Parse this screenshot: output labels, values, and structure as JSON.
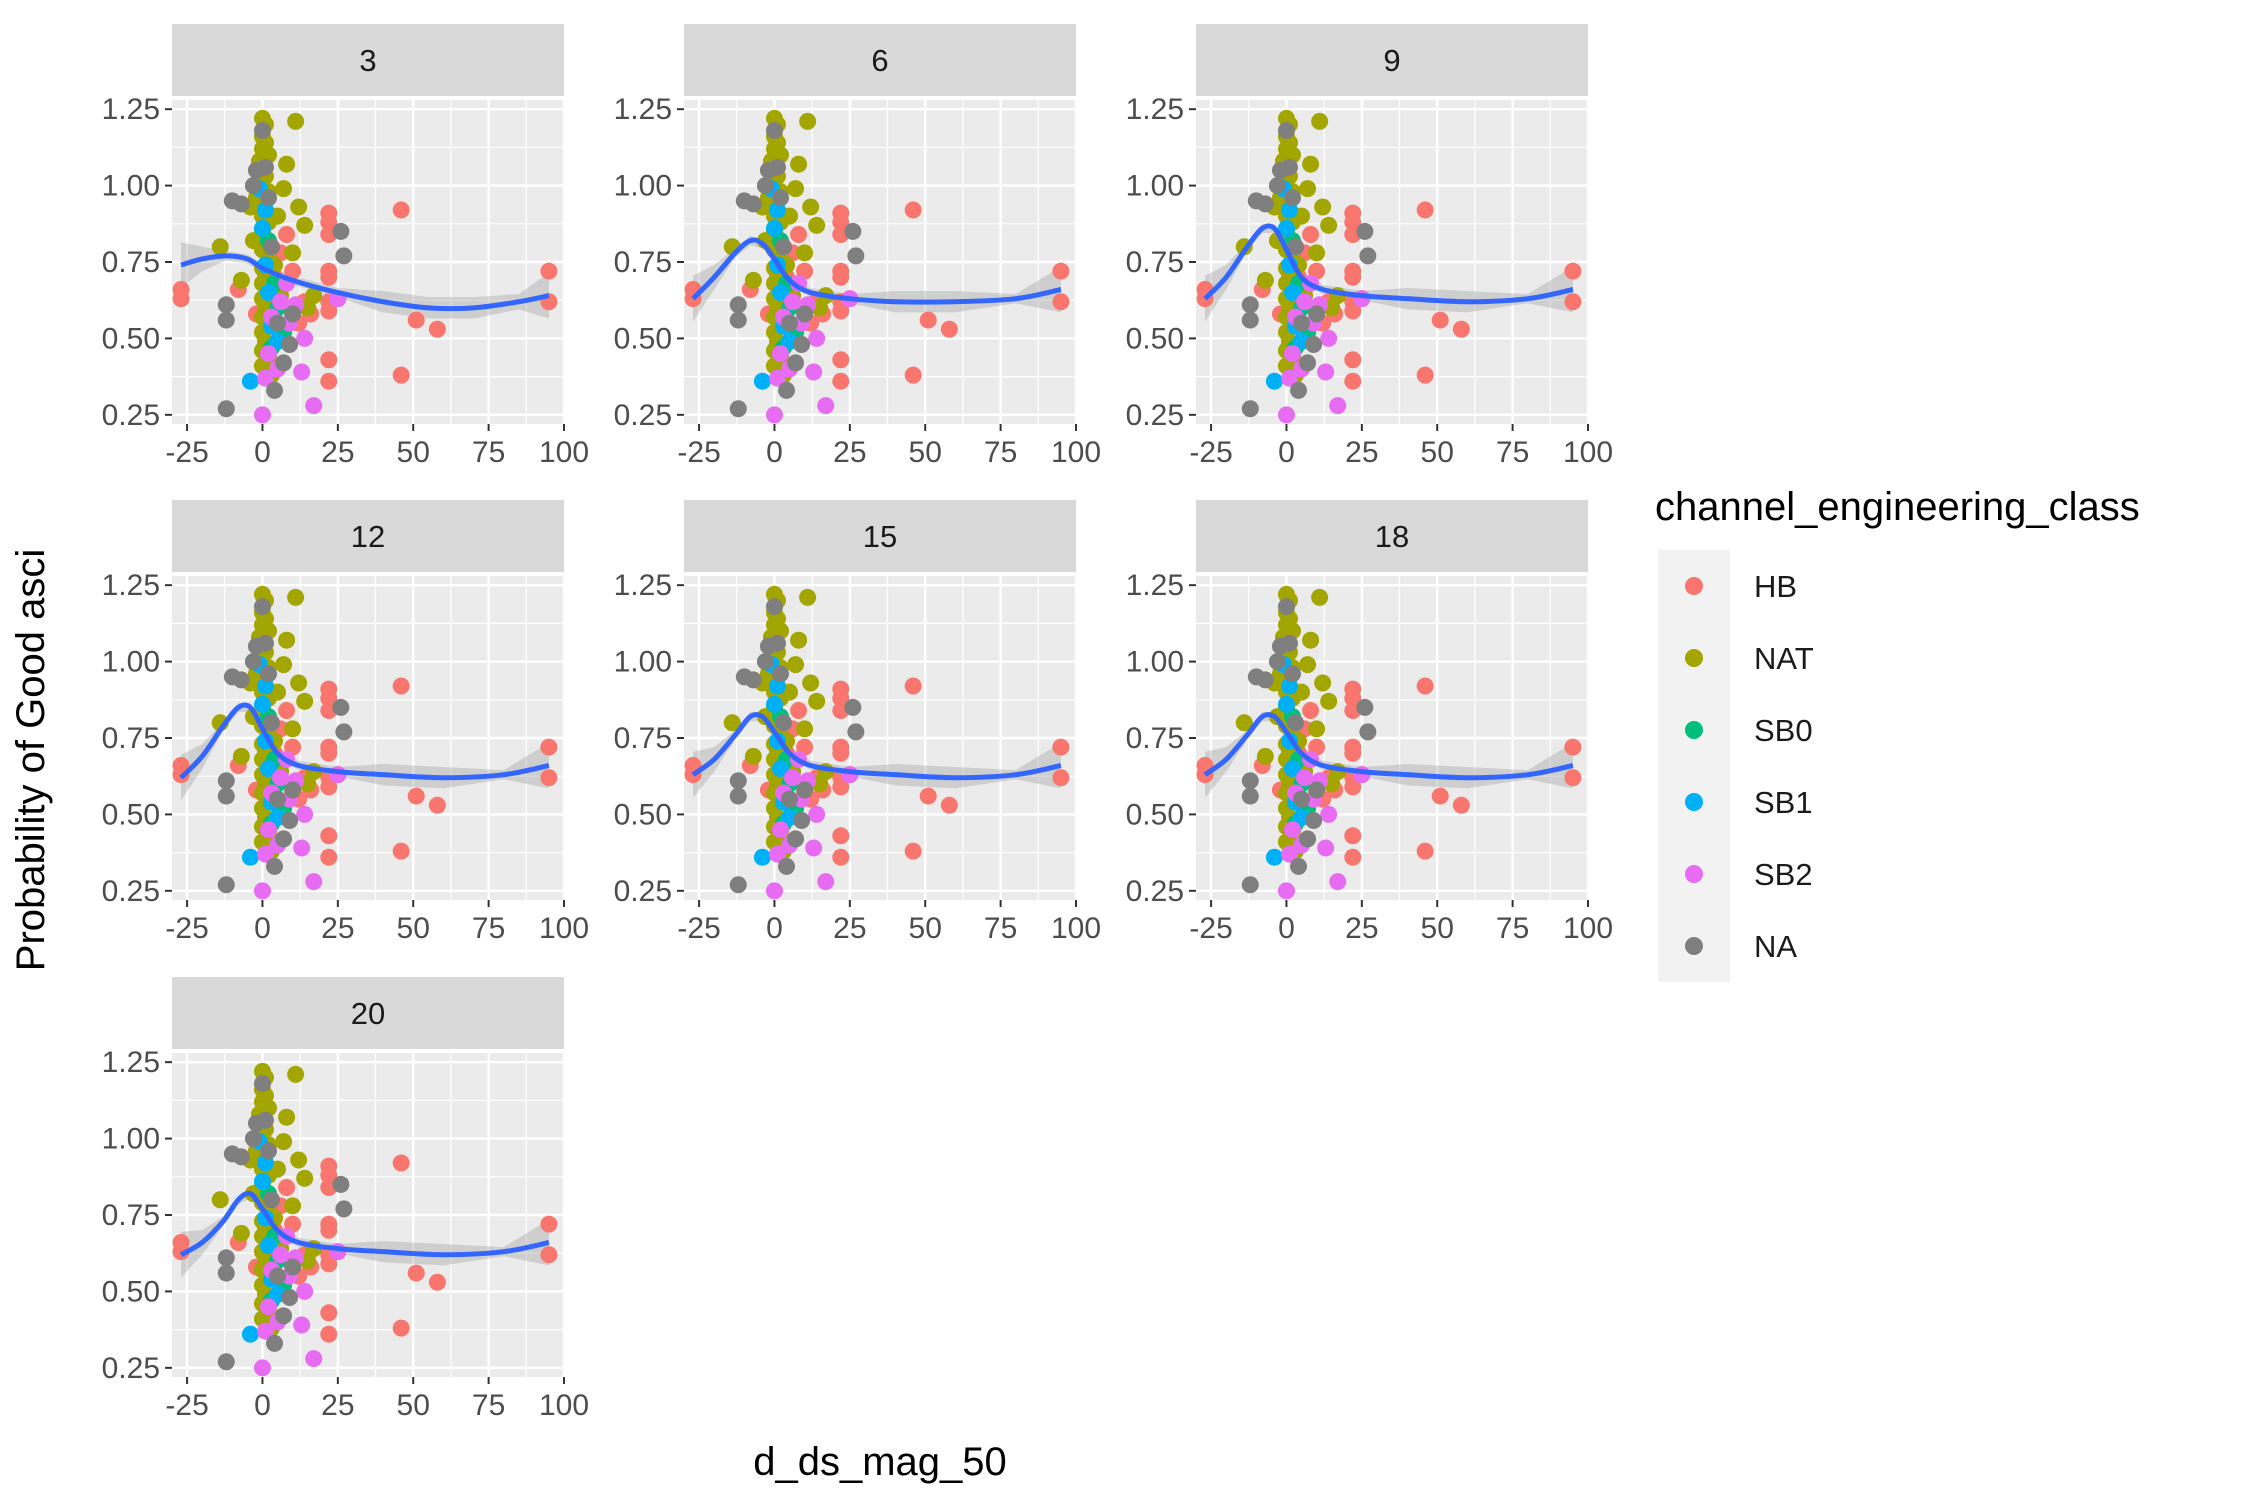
{
  "chart_data": {
    "type": "scatter",
    "xlabel": "d_ds_mag_50",
    "ylabel": "Probability of Good asci",
    "xlim": [
      -30,
      100
    ],
    "ylim": [
      0.22,
      1.28
    ],
    "xticks": [
      -25,
      0,
      25,
      50,
      75,
      100
    ],
    "xtick_labels": [
      "-25",
      "0",
      "25",
      "50",
      "75",
      "100"
    ],
    "yticks": [
      0.25,
      0.5,
      0.75,
      1.0,
      1.25
    ],
    "ytick_labels": [
      "0.25",
      "0.50",
      "0.75",
      "1.00",
      "1.25"
    ],
    "grid": true,
    "legend": {
      "title": "channel_engineering_class",
      "position": "right",
      "entries": [
        {
          "label": "HB",
          "color": "#F8766D"
        },
        {
          "label": "NAT",
          "color": "#A3A500"
        },
        {
          "label": "SB0",
          "color": "#00BF7D"
        },
        {
          "label": "SB1",
          "color": "#00B0F6"
        },
        {
          "label": "SB2",
          "color": "#E76BF3"
        },
        {
          "label": "NA",
          "color": "#7F7F7F"
        }
      ]
    },
    "smooth_color": "#3366FF",
    "panels": [
      {
        "label": "3",
        "smooth": [
          [
            -27,
            0.74
          ],
          [
            -20,
            0.76
          ],
          [
            -12,
            0.77
          ],
          [
            -5,
            0.76
          ],
          [
            0,
            0.73
          ],
          [
            10,
            0.69
          ],
          [
            25,
            0.65
          ],
          [
            40,
            0.62
          ],
          [
            55,
            0.6
          ],
          [
            70,
            0.6
          ],
          [
            85,
            0.62
          ],
          [
            95,
            0.64
          ]
        ]
      },
      {
        "label": "6",
        "smooth": [
          [
            -27,
            0.63
          ],
          [
            -20,
            0.7
          ],
          [
            -13,
            0.78
          ],
          [
            -8,
            0.82
          ],
          [
            -4,
            0.81
          ],
          [
            0,
            0.76
          ],
          [
            5,
            0.69
          ],
          [
            12,
            0.65
          ],
          [
            25,
            0.63
          ],
          [
            40,
            0.62
          ],
          [
            60,
            0.62
          ],
          [
            80,
            0.63
          ],
          [
            95,
            0.66
          ]
        ]
      },
      {
        "label": "9",
        "smooth": [
          [
            -27,
            0.63
          ],
          [
            -20,
            0.7
          ],
          [
            -13,
            0.8
          ],
          [
            -8,
            0.86
          ],
          [
            -4,
            0.86
          ],
          [
            0,
            0.79
          ],
          [
            5,
            0.7
          ],
          [
            12,
            0.66
          ],
          [
            25,
            0.64
          ],
          [
            40,
            0.63
          ],
          [
            60,
            0.62
          ],
          [
            80,
            0.63
          ],
          [
            95,
            0.66
          ]
        ]
      },
      {
        "label": "12",
        "smooth": [
          [
            -27,
            0.62
          ],
          [
            -20,
            0.69
          ],
          [
            -13,
            0.79
          ],
          [
            -8,
            0.85
          ],
          [
            -4,
            0.85
          ],
          [
            0,
            0.78
          ],
          [
            5,
            0.7
          ],
          [
            12,
            0.66
          ],
          [
            25,
            0.64
          ],
          [
            40,
            0.63
          ],
          [
            60,
            0.62
          ],
          [
            80,
            0.63
          ],
          [
            95,
            0.66
          ]
        ]
      },
      {
        "label": "15",
        "smooth": [
          [
            -27,
            0.63
          ],
          [
            -20,
            0.68
          ],
          [
            -13,
            0.76
          ],
          [
            -8,
            0.82
          ],
          [
            -4,
            0.82
          ],
          [
            0,
            0.77
          ],
          [
            5,
            0.7
          ],
          [
            12,
            0.66
          ],
          [
            25,
            0.64
          ],
          [
            40,
            0.63
          ],
          [
            60,
            0.62
          ],
          [
            80,
            0.63
          ],
          [
            95,
            0.66
          ]
        ]
      },
      {
        "label": "18",
        "smooth": [
          [
            -27,
            0.63
          ],
          [
            -20,
            0.68
          ],
          [
            -13,
            0.76
          ],
          [
            -8,
            0.82
          ],
          [
            -4,
            0.82
          ],
          [
            0,
            0.77
          ],
          [
            5,
            0.7
          ],
          [
            12,
            0.66
          ],
          [
            25,
            0.64
          ],
          [
            40,
            0.63
          ],
          [
            60,
            0.62
          ],
          [
            80,
            0.63
          ],
          [
            95,
            0.66
          ]
        ]
      },
      {
        "label": "20",
        "smooth": [
          [
            -27,
            0.62
          ],
          [
            -20,
            0.66
          ],
          [
            -13,
            0.73
          ],
          [
            -8,
            0.8
          ],
          [
            -4,
            0.82
          ],
          [
            0,
            0.77
          ],
          [
            5,
            0.7
          ],
          [
            12,
            0.66
          ],
          [
            25,
            0.64
          ],
          [
            40,
            0.63
          ],
          [
            60,
            0.62
          ],
          [
            80,
            0.63
          ],
          [
            95,
            0.66
          ]
        ]
      }
    ],
    "points": [
      {
        "x": -27,
        "y": 0.66,
        "class": "HB"
      },
      {
        "x": -27,
        "y": 0.63,
        "class": "HB"
      },
      {
        "x": -8,
        "y": 0.66,
        "class": "HB"
      },
      {
        "x": -2,
        "y": 0.58,
        "class": "HB"
      },
      {
        "x": 2,
        "y": 0.62,
        "class": "HB"
      },
      {
        "x": 4,
        "y": 0.7,
        "class": "HB"
      },
      {
        "x": 6,
        "y": 0.78,
        "class": "HB"
      },
      {
        "x": 8,
        "y": 0.84,
        "class": "HB"
      },
      {
        "x": 10,
        "y": 0.72,
        "class": "HB"
      },
      {
        "x": 12,
        "y": 0.55,
        "class": "HB"
      },
      {
        "x": 14,
        "y": 0.62,
        "class": "HB"
      },
      {
        "x": 16,
        "y": 0.58,
        "class": "HB"
      },
      {
        "x": 22,
        "y": 0.91,
        "class": "HB"
      },
      {
        "x": 22,
        "y": 0.88,
        "class": "HB"
      },
      {
        "x": 22,
        "y": 0.84,
        "class": "HB"
      },
      {
        "x": 22,
        "y": 0.72,
        "class": "HB"
      },
      {
        "x": 22,
        "y": 0.7,
        "class": "HB"
      },
      {
        "x": 22,
        "y": 0.62,
        "class": "HB"
      },
      {
        "x": 22,
        "y": 0.59,
        "class": "HB"
      },
      {
        "x": 22,
        "y": 0.43,
        "class": "HB"
      },
      {
        "x": 22,
        "y": 0.36,
        "class": "HB"
      },
      {
        "x": 25,
        "y": 0.63,
        "class": "HB"
      },
      {
        "x": 46,
        "y": 0.92,
        "class": "HB"
      },
      {
        "x": 46,
        "y": 0.38,
        "class": "HB"
      },
      {
        "x": 51,
        "y": 0.56,
        "class": "HB"
      },
      {
        "x": 58,
        "y": 0.53,
        "class": "HB"
      },
      {
        "x": 95,
        "y": 0.72,
        "class": "HB"
      },
      {
        "x": 95,
        "y": 0.62,
        "class": "HB"
      },
      {
        "x": -14,
        "y": 0.8,
        "class": "NAT"
      },
      {
        "x": -7,
        "y": 0.69,
        "class": "NAT"
      },
      {
        "x": -4,
        "y": 0.93,
        "class": "NAT"
      },
      {
        "x": -3,
        "y": 0.82,
        "class": "NAT"
      },
      {
        "x": -2,
        "y": 0.96,
        "class": "NAT"
      },
      {
        "x": -1,
        "y": 1.08,
        "class": "NAT"
      },
      {
        "x": 0,
        "y": 1.22,
        "class": "NAT"
      },
      {
        "x": 1,
        "y": 1.2,
        "class": "NAT"
      },
      {
        "x": 0,
        "y": 1.16,
        "class": "NAT"
      },
      {
        "x": 1,
        "y": 1.14,
        "class": "NAT"
      },
      {
        "x": 0,
        "y": 1.12,
        "class": "NAT"
      },
      {
        "x": 2,
        "y": 1.1,
        "class": "NAT"
      },
      {
        "x": 0,
        "y": 1.05,
        "class": "NAT"
      },
      {
        "x": 1,
        "y": 1.03,
        "class": "NAT"
      },
      {
        "x": 0,
        "y": 1.0,
        "class": "NAT"
      },
      {
        "x": 2,
        "y": 0.98,
        "class": "NAT"
      },
      {
        "x": 0,
        "y": 0.95,
        "class": "NAT"
      },
      {
        "x": 1,
        "y": 0.92,
        "class": "NAT"
      },
      {
        "x": 0,
        "y": 0.9,
        "class": "NAT"
      },
      {
        "x": 2,
        "y": 0.88,
        "class": "NAT"
      },
      {
        "x": 0,
        "y": 0.85,
        "class": "NAT"
      },
      {
        "x": 1,
        "y": 0.82,
        "class": "NAT"
      },
      {
        "x": 0,
        "y": 0.79,
        "class": "NAT"
      },
      {
        "x": 2,
        "y": 0.76,
        "class": "NAT"
      },
      {
        "x": 0,
        "y": 0.73,
        "class": "NAT"
      },
      {
        "x": 1,
        "y": 0.71,
        "class": "NAT"
      },
      {
        "x": 0,
        "y": 0.68,
        "class": "NAT"
      },
      {
        "x": 2,
        "y": 0.66,
        "class": "NAT"
      },
      {
        "x": 0,
        "y": 0.63,
        "class": "NAT"
      },
      {
        "x": 1,
        "y": 0.6,
        "class": "NAT"
      },
      {
        "x": 0,
        "y": 0.57,
        "class": "NAT"
      },
      {
        "x": 2,
        "y": 0.55,
        "class": "NAT"
      },
      {
        "x": 0,
        "y": 0.52,
        "class": "NAT"
      },
      {
        "x": 1,
        "y": 0.49,
        "class": "NAT"
      },
      {
        "x": 0,
        "y": 0.46,
        "class": "NAT"
      },
      {
        "x": 2,
        "y": 0.44,
        "class": "NAT"
      },
      {
        "x": 0,
        "y": 0.41,
        "class": "NAT"
      },
      {
        "x": 3,
        "y": 0.38,
        "class": "NAT"
      },
      {
        "x": 4,
        "y": 0.74,
        "class": "NAT"
      },
      {
        "x": 5,
        "y": 0.9,
        "class": "NAT"
      },
      {
        "x": 6,
        "y": 0.64,
        "class": "NAT"
      },
      {
        "x": 7,
        "y": 0.99,
        "class": "NAT"
      },
      {
        "x": 8,
        "y": 1.07,
        "class": "NAT"
      },
      {
        "x": 10,
        "y": 0.78,
        "class": "NAT"
      },
      {
        "x": 11,
        "y": 1.21,
        "class": "NAT"
      },
      {
        "x": 12,
        "y": 0.93,
        "class": "NAT"
      },
      {
        "x": 14,
        "y": 0.87,
        "class": "NAT"
      },
      {
        "x": 15,
        "y": 0.6,
        "class": "NAT"
      },
      {
        "x": 17,
        "y": 0.64,
        "class": "NAT"
      },
      {
        "x": 2,
        "y": 0.82,
        "class": "SB0"
      },
      {
        "x": 4,
        "y": 0.68,
        "class": "SB0"
      },
      {
        "x": 5,
        "y": 0.6,
        "class": "SB0"
      },
      {
        "x": 7,
        "y": 0.52,
        "class": "SB0"
      },
      {
        "x": 3,
        "y": 0.47,
        "class": "SB0"
      },
      {
        "x": -4,
        "y": 0.36,
        "class": "SB1"
      },
      {
        "x": -1,
        "y": 0.99,
        "class": "SB1"
      },
      {
        "x": 0,
        "y": 0.86,
        "class": "SB1"
      },
      {
        "x": 1,
        "y": 0.74,
        "class": "SB1"
      },
      {
        "x": 2,
        "y": 0.65,
        "class": "SB1"
      },
      {
        "x": 3,
        "y": 0.54,
        "class": "SB1"
      },
      {
        "x": 5,
        "y": 0.49,
        "class": "SB1"
      },
      {
        "x": 1,
        "y": 0.92,
        "class": "SB1"
      },
      {
        "x": 0,
        "y": 0.25,
        "class": "SB2"
      },
      {
        "x": 1,
        "y": 0.37,
        "class": "SB2"
      },
      {
        "x": 2,
        "y": 0.45,
        "class": "SB2"
      },
      {
        "x": 3,
        "y": 0.57,
        "class": "SB2"
      },
      {
        "x": 5,
        "y": 0.4,
        "class": "SB2"
      },
      {
        "x": 6,
        "y": 0.62,
        "class": "SB2"
      },
      {
        "x": 8,
        "y": 0.68,
        "class": "SB2"
      },
      {
        "x": 9,
        "y": 0.55,
        "class": "SB2"
      },
      {
        "x": 11,
        "y": 0.61,
        "class": "SB2"
      },
      {
        "x": 13,
        "y": 0.39,
        "class": "SB2"
      },
      {
        "x": 14,
        "y": 0.5,
        "class": "SB2"
      },
      {
        "x": 17,
        "y": 0.28,
        "class": "SB2"
      },
      {
        "x": 25,
        "y": 0.63,
        "class": "SB2"
      },
      {
        "x": -12,
        "y": 0.27,
        "class": "NA"
      },
      {
        "x": -12,
        "y": 0.61,
        "class": "NA"
      },
      {
        "x": -12,
        "y": 0.56,
        "class": "NA"
      },
      {
        "x": -10,
        "y": 0.95,
        "class": "NA"
      },
      {
        "x": -7,
        "y": 0.94,
        "class": "NA"
      },
      {
        "x": -3,
        "y": 1.0,
        "class": "NA"
      },
      {
        "x": -2,
        "y": 1.05,
        "class": "NA"
      },
      {
        "x": 0,
        "y": 1.18,
        "class": "NA"
      },
      {
        "x": 1,
        "y": 1.06,
        "class": "NA"
      },
      {
        "x": 2,
        "y": 0.96,
        "class": "NA"
      },
      {
        "x": 3,
        "y": 0.8,
        "class": "NA"
      },
      {
        "x": 4,
        "y": 0.33,
        "class": "NA"
      },
      {
        "x": 5,
        "y": 0.55,
        "class": "NA"
      },
      {
        "x": 7,
        "y": 0.42,
        "class": "NA"
      },
      {
        "x": 9,
        "y": 0.48,
        "class": "NA"
      },
      {
        "x": 10,
        "y": 0.58,
        "class": "NA"
      },
      {
        "x": 26,
        "y": 0.85,
        "class": "NA"
      },
      {
        "x": 27,
        "y": 0.77,
        "class": "NA"
      }
    ]
  }
}
